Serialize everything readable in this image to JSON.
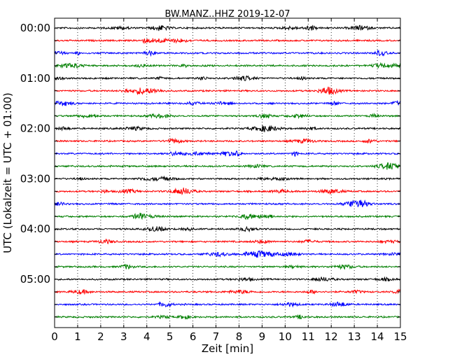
{
  "chart_data": {
    "type": "line",
    "title": "BW.MANZ..HHZ 2019-12-07",
    "xlabel": "Zeit  [min]",
    "ylabel": "UTC (Lokalzeit = UTC + 01:00)",
    "xlim": [
      0,
      15
    ],
    "x_ticks": [
      "0",
      "1",
      "2",
      "3",
      "4",
      "5",
      "6",
      "7",
      "8",
      "9",
      "10",
      "11",
      "12",
      "13",
      "14",
      "15"
    ],
    "y_tick_labels": [
      "00:00",
      "01:00",
      "02:00",
      "03:00",
      "04:00",
      "05:00"
    ],
    "trace_count": 24,
    "trace_interval_min": 15,
    "colors": [
      "#000000",
      "#ff0000",
      "#0000ff",
      "#007f00"
    ],
    "grid": "vertical dotted at each minute",
    "legend": "none"
  }
}
